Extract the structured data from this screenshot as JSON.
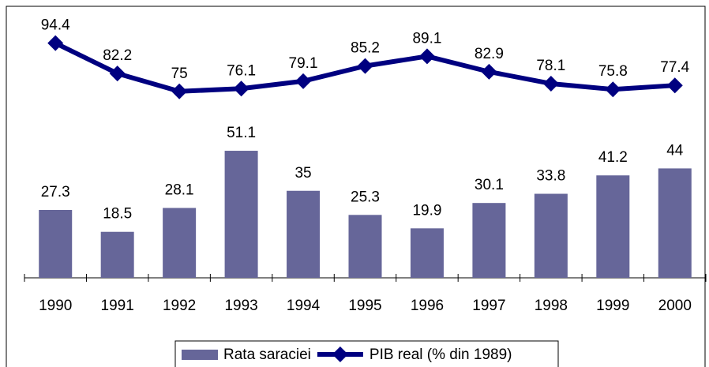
{
  "chart_data": {
    "type": "bar",
    "categories": [
      "1990",
      "1991",
      "1992",
      "1993",
      "1994",
      "1995",
      "1996",
      "1997",
      "1998",
      "1999",
      "2000"
    ],
    "series": [
      {
        "name": "Rata saraciei",
        "type": "bar",
        "color": "#666699",
        "values": [
          27.3,
          18.5,
          28.1,
          51.1,
          35,
          25.3,
          19.9,
          30.1,
          33.8,
          41.2,
          44
        ]
      },
      {
        "name": "PIB real (% din 1989)",
        "type": "line",
        "color": "#000080",
        "values": [
          94.4,
          82.2,
          75,
          76.1,
          79.1,
          85.2,
          89.1,
          82.9,
          78.1,
          75.8,
          77.4
        ]
      }
    ],
    "ylim": [
      0,
      100
    ],
    "legend": "bottom"
  }
}
